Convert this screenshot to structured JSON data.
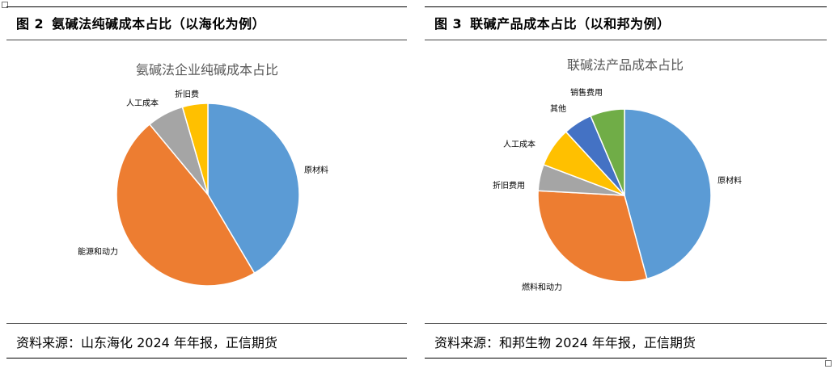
{
  "figures": [
    {
      "label": "图",
      "number": "2",
      "title": "氨碱法纯碱成本占比（以海化为例）",
      "source": "资料来源：山东海化 2024 年年报，正信期货"
    },
    {
      "label": "图",
      "number": "3",
      "title": "联碱产品成本占比（以和邦为例）",
      "source": "资料来源：和邦生物 2024 年年报，正信期货"
    }
  ],
  "chart_data": [
    {
      "type": "pie",
      "title": "氨碱法企业纯碱成本占比",
      "start": "12 o'clock, clockwise",
      "categories": [
        "原材料",
        "能源和动力",
        "人工成本",
        "折旧费"
      ],
      "values": [
        41.5,
        47.5,
        6.5,
        4.5
      ],
      "colors": [
        "#5B9BD5",
        "#ED7D31",
        "#A5A5A5",
        "#FFC000"
      ]
    },
    {
      "type": "pie",
      "title": "联碱法产品成本占比",
      "start": "12 o'clock, clockwise",
      "categories": [
        "原材料",
        "燃料和动力",
        "折旧费用",
        "人工成本",
        "其他",
        "销售费用"
      ],
      "values": [
        46.5,
        30.5,
        5.0,
        7.5,
        5.5,
        6.5
      ],
      "colors": [
        "#5B9BD5",
        "#ED7D31",
        "#A5A5A5",
        "#FFC000",
        "#4472C4",
        "#70AD47"
      ]
    }
  ]
}
